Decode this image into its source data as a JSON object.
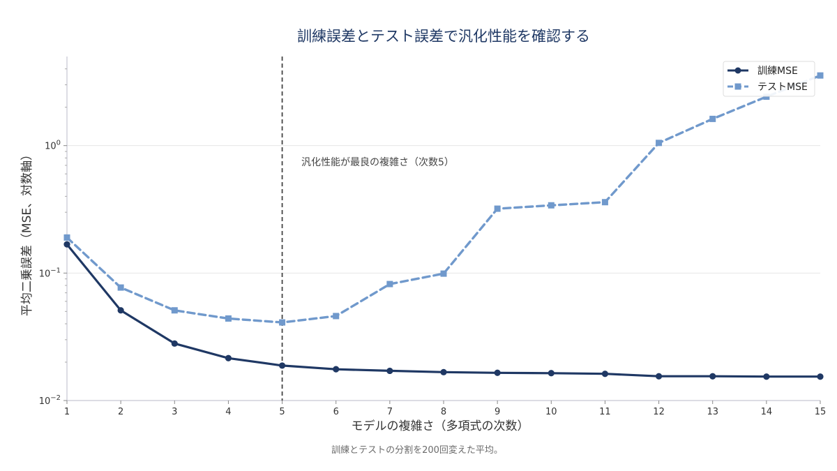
{
  "chart_data": {
    "type": "line",
    "title": "訓練誤差とテスト誤差で汎化性能を確認する",
    "xlabel": "モデルの複雑さ（多項式の次数）",
    "ylabel": "平均二乗誤差（MSE、対数軸）",
    "caption": "訓練とテストの分割を200回変えた平均。",
    "x": [
      1,
      2,
      3,
      4,
      5,
      6,
      7,
      8,
      9,
      10,
      11,
      12,
      13,
      14,
      15
    ],
    "xlim": [
      1,
      15
    ],
    "y_scale": "log",
    "ylim": [
      0.01,
      5
    ],
    "y_ticks": [
      {
        "value": 0.01,
        "base": "10",
        "exp": "−2"
      },
      {
        "value": 0.1,
        "base": "10",
        "exp": "−1"
      },
      {
        "value": 1,
        "base": "10",
        "exp": "0"
      }
    ],
    "grid": "horizontal at major ticks",
    "legend_position": "top-right",
    "series": [
      {
        "name": "訓練MSE",
        "color": "#1f3864",
        "style": "solid",
        "marker": "circle",
        "values": [
          0.168,
          0.051,
          0.028,
          0.0215,
          0.0188,
          0.0176,
          0.0171,
          0.0167,
          0.0165,
          0.0164,
          0.0162,
          0.0155,
          0.0155,
          0.0154,
          0.0154
        ]
      },
      {
        "name": "テストMSE",
        "color": "#7099cc",
        "style": "dashed",
        "marker": "square",
        "values": [
          0.19,
          0.077,
          0.051,
          0.044,
          0.041,
          0.046,
          0.082,
          0.099,
          0.32,
          0.34,
          0.36,
          1.05,
          1.62,
          2.42,
          3.55
        ]
      }
    ],
    "vline": {
      "x": 5,
      "style": "dashed",
      "color": "#444444"
    },
    "annotation": "汎化性能が最良の複雑さ（次数5）"
  }
}
